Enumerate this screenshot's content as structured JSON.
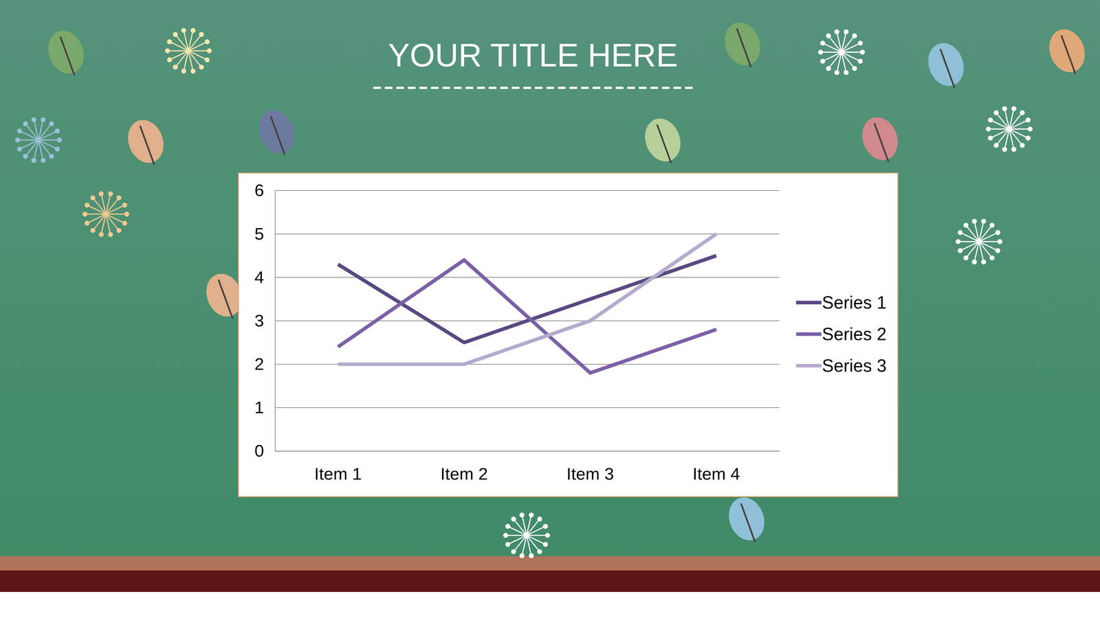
{
  "chart_data": {
    "type": "line",
    "title": "YOUR TITLE HERE",
    "categories": [
      "Item 1",
      "Item 2",
      "Item 3",
      "Item 4"
    ],
    "series": [
      {
        "name": "Series 1",
        "color": "#5a4882",
        "values": [
          4.3,
          2.5,
          3.5,
          4.5
        ]
      },
      {
        "name": "Series 2",
        "color": "#7b60a6",
        "values": [
          2.4,
          4.4,
          1.8,
          2.8
        ]
      },
      {
        "name": "Series 3",
        "color": "#b4aacd",
        "values": [
          2,
          2,
          3,
          5
        ]
      }
    ],
    "ylim": [
      0,
      6
    ],
    "yticks": [
      0,
      1,
      2,
      3,
      4,
      5,
      6
    ],
    "grid": true,
    "legend": "right"
  }
}
